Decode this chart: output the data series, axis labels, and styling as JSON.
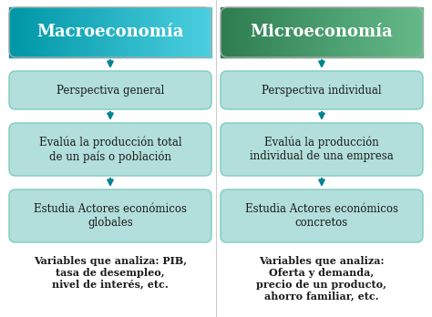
{
  "bg_color": "#ffffff",
  "left_title": "Macroeconomía",
  "right_title": "Microeconomía",
  "left_title_color1": "#0097a7",
  "left_title_color2": "#4dd0e1",
  "right_title_color1": "#2e7d52",
  "right_title_color2": "#66bb8a",
  "left_boxes": [
    "Perspectiva general",
    "Evalúa la producción total\nde un país o población",
    "Estudia Actores económicos\nglobales"
  ],
  "right_boxes": [
    "Perspectiva individual",
    "Evalúa la producción\nindividual de una empresa",
    "Estudia Actores económicos\nconcretos"
  ],
  "left_note": "Variables que analiza: PIB,\ntasa de desempleo,\nnivel de interés, etc.",
  "right_note": "Variables que analiza:\nOferta y demanda,\nprecio de un producto,\nahorro familiar, etc.",
  "box_bg": "#b2dfdb",
  "box_border": "#80cbc4",
  "box_text_color": "#1a1a1a",
  "note_text_color": "#1a1a1a",
  "arrow_color": "#00838f",
  "title_text_color": "#ffffff",
  "divider_color": "#cccccc"
}
